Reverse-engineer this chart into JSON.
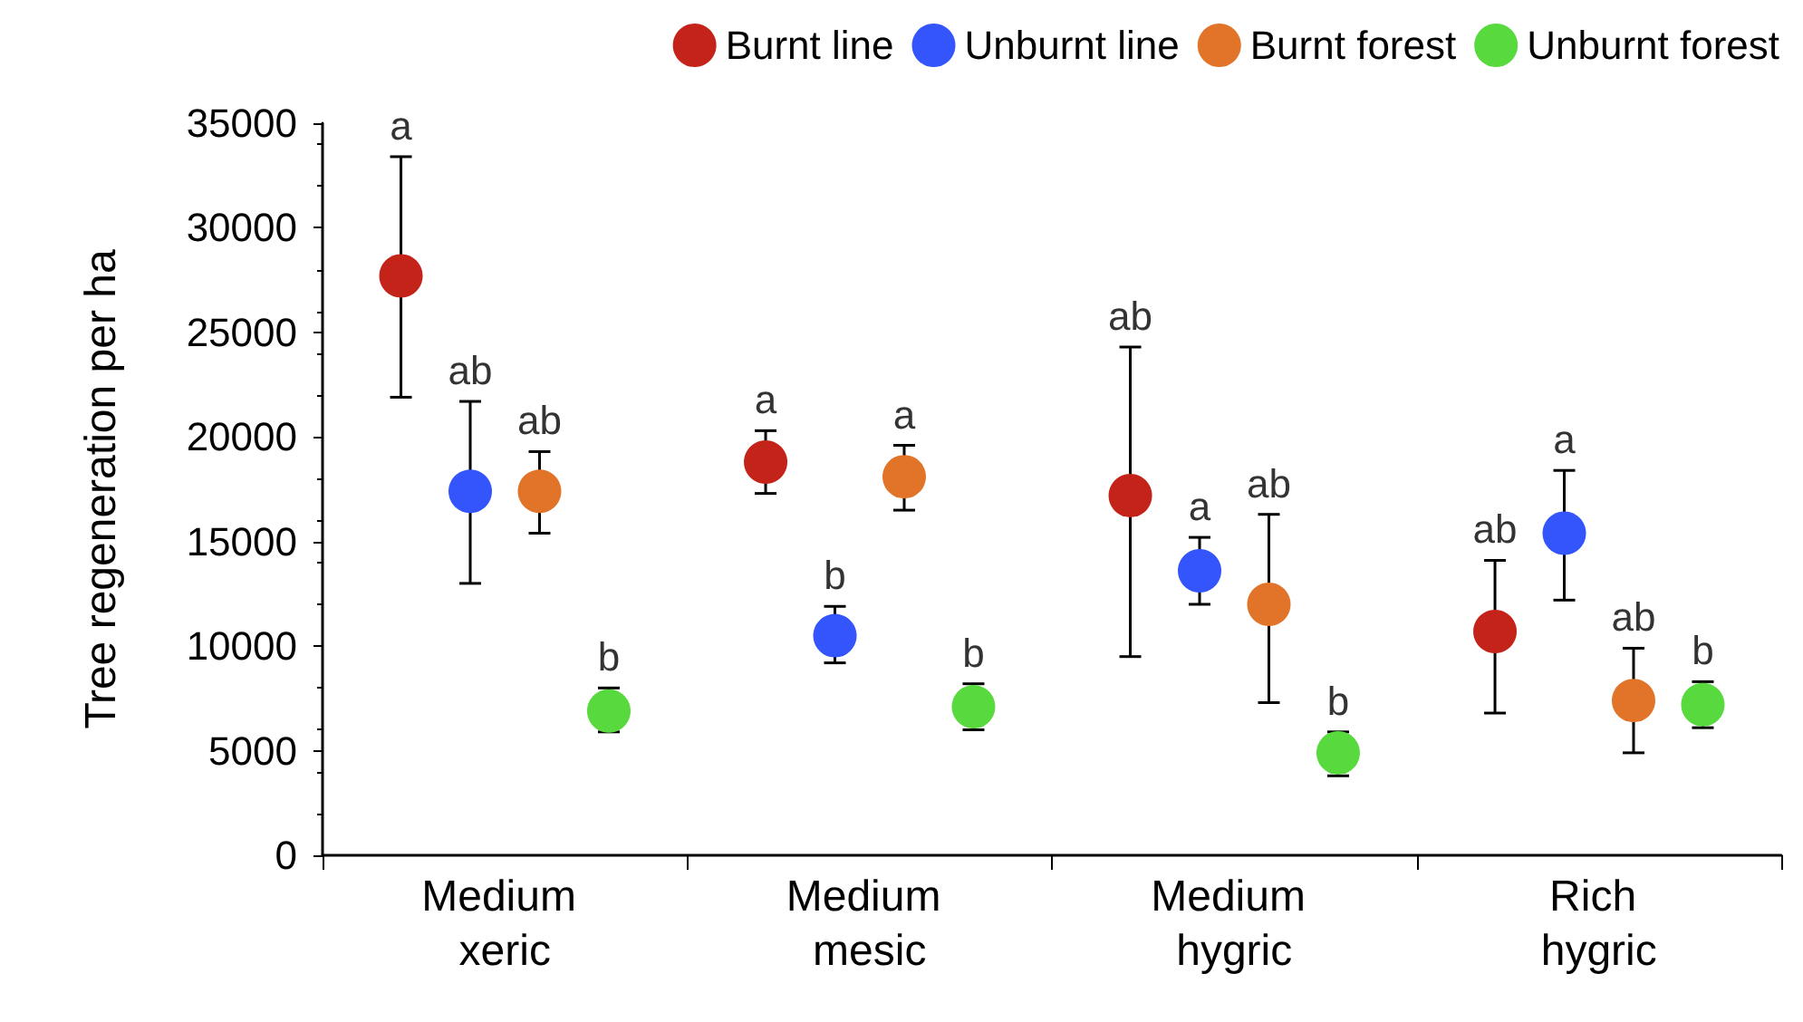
{
  "chart_data": {
    "type": "scatter",
    "ylabel": "Tree regeneration per ha",
    "categories": [
      "Medium xeric",
      "Medium mesic",
      "Medium hygric",
      "Rich hygric"
    ],
    "series": [
      {
        "name": "Burnt line",
        "color": "#c4231a",
        "values": [
          27700,
          18800,
          17200,
          10700
        ],
        "errors": [
          [
            21900,
            33400
          ],
          [
            17300,
            20300
          ],
          [
            9500,
            24300
          ],
          [
            6800,
            14100
          ]
        ]
      },
      {
        "name": "Unburnt line",
        "color": "#3355fb",
        "values": [
          17400,
          10500,
          13600,
          15400
        ],
        "errors": [
          [
            13000,
            21700
          ],
          [
            9200,
            11900
          ],
          [
            12000,
            15200
          ],
          [
            12200,
            18400
          ]
        ]
      },
      {
        "name": "Burnt forest",
        "color": "#e2742a",
        "values": [
          17400,
          18100,
          12000,
          7400
        ],
        "errors": [
          [
            15400,
            19300
          ],
          [
            16500,
            19600
          ],
          [
            7300,
            16300
          ],
          [
            4900,
            9900
          ]
        ]
      },
      {
        "name": "Unburnt forest",
        "color": "#58d93e",
        "values": [
          6900,
          7100,
          4900,
          7200
        ],
        "errors": [
          [
            5900,
            8000
          ],
          [
            6000,
            8200
          ],
          [
            3800,
            5900
          ],
          [
            6100,
            8300
          ]
        ]
      }
    ],
    "annotations": [
      "a",
      "a",
      "ab",
      "ab",
      "ab",
      "b",
      "a",
      "a",
      "ab",
      "a",
      "ab",
      "ab",
      "b",
      "b",
      "b",
      "b"
    ],
    "ylim": [
      0,
      35000
    ],
    "yticks": [
      0,
      5000,
      10000,
      15000,
      20000,
      25000,
      30000,
      35000
    ],
    "grid": false,
    "legend": "top",
    "marker": "circle"
  }
}
